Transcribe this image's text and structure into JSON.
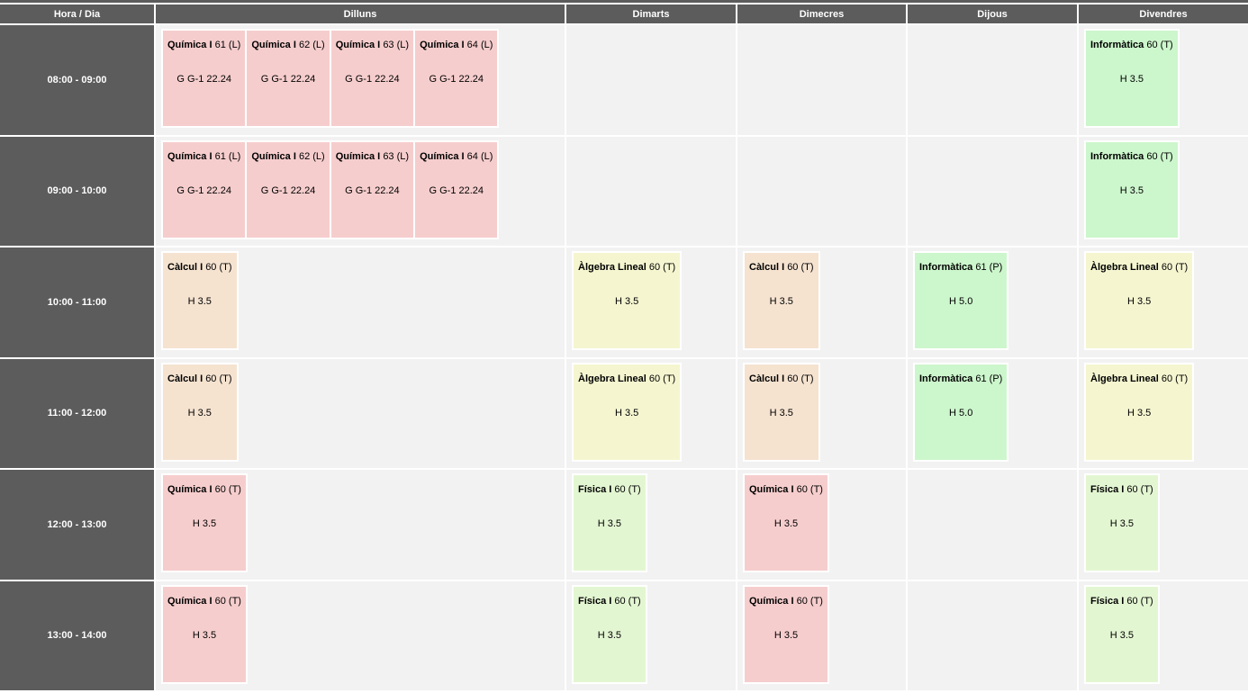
{
  "header": {
    "hour_label": "Hora / Dia",
    "days": [
      "Dilluns",
      "Dimarts",
      "Dimecres",
      "Dijous",
      "Divendres"
    ]
  },
  "colors": {
    "Química I": "#f6cdcd",
    "Càlcul I": "#f5e3d0",
    "Àlgebra Lineal": "#f5f6d0",
    "Informàtica": "#ccf6cc",
    "Física I": "#e3f6d2",
    "header": "#5c5c5c",
    "cell": "#f2f2f2"
  },
  "rows": [
    {
      "hour": "08:00 - 09:00",
      "days": [
        [
          {
            "name": "Química I",
            "group": "61",
            "type": "(L)",
            "room": "G G-1 22.24"
          },
          {
            "name": "Química I",
            "group": "62",
            "type": "(L)",
            "room": "G G-1 22.24"
          },
          {
            "name": "Química I",
            "group": "63",
            "type": "(L)",
            "room": "G G-1 22.24"
          },
          {
            "name": "Química I",
            "group": "64",
            "type": "(L)",
            "room": "G G-1 22.24"
          }
        ],
        [],
        [],
        [],
        [
          {
            "name": "Informàtica",
            "group": "60",
            "type": "(T)",
            "room": "H 3.5"
          }
        ]
      ]
    },
    {
      "hour": "09:00 - 10:00",
      "days": [
        [
          {
            "name": "Química I",
            "group": "61",
            "type": "(L)",
            "room": "G G-1 22.24"
          },
          {
            "name": "Química I",
            "group": "62",
            "type": "(L)",
            "room": "G G-1 22.24"
          },
          {
            "name": "Química I",
            "group": "63",
            "type": "(L)",
            "room": "G G-1 22.24"
          },
          {
            "name": "Química I",
            "group": "64",
            "type": "(L)",
            "room": "G G-1 22.24"
          }
        ],
        [],
        [],
        [],
        [
          {
            "name": "Informàtica",
            "group": "60",
            "type": "(T)",
            "room": "H 3.5"
          }
        ]
      ]
    },
    {
      "hour": "10:00 - 11:00",
      "days": [
        [
          {
            "name": "Càlcul I",
            "group": "60",
            "type": "(T)",
            "room": "H 3.5"
          }
        ],
        [
          {
            "name": "Àlgebra Lineal",
            "group": "60",
            "type": "(T)",
            "room": "H 3.5"
          }
        ],
        [
          {
            "name": "Càlcul I",
            "group": "60",
            "type": "(T)",
            "room": "H 3.5"
          }
        ],
        [
          {
            "name": "Informàtica",
            "group": "61",
            "type": "(P)",
            "room": "H 5.0"
          }
        ],
        [
          {
            "name": "Àlgebra Lineal",
            "group": "60",
            "type": "(T)",
            "room": "H 3.5"
          }
        ]
      ]
    },
    {
      "hour": "11:00 - 12:00",
      "days": [
        [
          {
            "name": "Càlcul I",
            "group": "60",
            "type": "(T)",
            "room": "H 3.5"
          }
        ],
        [
          {
            "name": "Àlgebra Lineal",
            "group": "60",
            "type": "(T)",
            "room": "H 3.5"
          }
        ],
        [
          {
            "name": "Càlcul I",
            "group": "60",
            "type": "(T)",
            "room": "H 3.5"
          }
        ],
        [
          {
            "name": "Informàtica",
            "group": "61",
            "type": "(P)",
            "room": "H 5.0"
          }
        ],
        [
          {
            "name": "Àlgebra Lineal",
            "group": "60",
            "type": "(T)",
            "room": "H 3.5"
          }
        ]
      ]
    },
    {
      "hour": "12:00 - 13:00",
      "days": [
        [
          {
            "name": "Química I",
            "group": "60",
            "type": "(T)",
            "room": "H 3.5"
          }
        ],
        [
          {
            "name": "Física I",
            "group": "60",
            "type": "(T)",
            "room": "H 3.5"
          }
        ],
        [
          {
            "name": "Química I",
            "group": "60",
            "type": "(T)",
            "room": "H 3.5"
          }
        ],
        [],
        [
          {
            "name": "Física I",
            "group": "60",
            "type": "(T)",
            "room": "H 3.5"
          }
        ]
      ]
    },
    {
      "hour": "13:00 - 14:00",
      "days": [
        [
          {
            "name": "Química I",
            "group": "60",
            "type": "(T)",
            "room": "H 3.5"
          }
        ],
        [
          {
            "name": "Física I",
            "group": "60",
            "type": "(T)",
            "room": "H 3.5"
          }
        ],
        [
          {
            "name": "Química I",
            "group": "60",
            "type": "(T)",
            "room": "H 3.5"
          }
        ],
        [],
        [
          {
            "name": "Física I",
            "group": "60",
            "type": "(T)",
            "room": "H 3.5"
          }
        ]
      ]
    }
  ]
}
